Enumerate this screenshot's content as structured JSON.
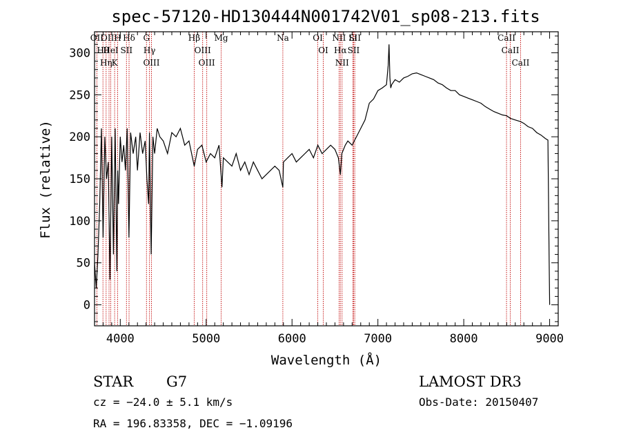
{
  "colors": {
    "spectrum": "#000000",
    "line_marker": "#c00000",
    "axes": "#000000",
    "background": "#ffffff"
  },
  "chart_data": {
    "type": "line",
    "title": "spec-57120-HD130444N001742V01_sp08-213.fits",
    "xlabel": "Wavelength (Å)",
    "ylabel": "Flux (relative)",
    "xlim": [
      3700,
      9100
    ],
    "ylim": [
      -25,
      325
    ],
    "xticks": [
      4000,
      5000,
      6000,
      7000,
      8000,
      9000
    ],
    "yticks": [
      0,
      50,
      100,
      150,
      200,
      250,
      300
    ],
    "grid": false,
    "series": [
      {
        "name": "flux",
        "x": [
          3700,
          3720,
          3740,
          3760,
          3780,
          3800,
          3820,
          3840,
          3860,
          3880,
          3900,
          3920,
          3940,
          3960,
          3970,
          3980,
          4000,
          4020,
          4040,
          4060,
          4080,
          4101,
          4120,
          4150,
          4180,
          4200,
          4230,
          4260,
          4290,
          4310,
          4330,
          4340,
          4360,
          4380,
          4400,
          4430,
          4460,
          4500,
          4550,
          4600,
          4650,
          4700,
          4750,
          4800,
          4861,
          4900,
          4950,
          5000,
          5050,
          5100,
          5150,
          5184,
          5200,
          5250,
          5300,
          5350,
          5400,
          5450,
          5500,
          5550,
          5600,
          5650,
          5700,
          5750,
          5800,
          5850,
          5893,
          5900,
          5950,
          6000,
          6050,
          6100,
          6150,
          6200,
          6250,
          6300,
          6350,
          6400,
          6450,
          6500,
          6540,
          6563,
          6580,
          6600,
          6620,
          6650,
          6700,
          6750,
          6800,
          6850,
          6900,
          6950,
          7000,
          7050,
          7100,
          7120,
          7130,
          7140,
          7150,
          7160,
          7180,
          7200,
          7250,
          7300,
          7350,
          7400,
          7450,
          7500,
          7550,
          7600,
          7650,
          7700,
          7750,
          7800,
          7850,
          7900,
          7950,
          8000,
          8050,
          8100,
          8150,
          8200,
          8250,
          8300,
          8350,
          8400,
          8450,
          8500,
          8542,
          8600,
          8662,
          8700,
          8750,
          8800,
          8850,
          8900,
          8950,
          8980,
          8995,
          9000
        ],
        "values": [
          50,
          20,
          60,
          120,
          210,
          80,
          200,
          150,
          170,
          30,
          200,
          60,
          210,
          40,
          160,
          120,
          200,
          170,
          190,
          160,
          210,
          80,
          205,
          180,
          200,
          160,
          205,
          180,
          195,
          150,
          120,
          205,
          60,
          200,
          180,
          210,
          200,
          195,
          180,
          205,
          200,
          210,
          190,
          195,
          165,
          185,
          190,
          170,
          180,
          175,
          190,
          140,
          175,
          170,
          165,
          180,
          160,
          170,
          155,
          170,
          160,
          150,
          155,
          160,
          165,
          160,
          140,
          170,
          175,
          180,
          170,
          175,
          180,
          185,
          175,
          190,
          180,
          185,
          190,
          185,
          175,
          155,
          180,
          185,
          190,
          195,
          190,
          200,
          210,
          220,
          240,
          245,
          255,
          258,
          262,
          285,
          310,
          270,
          258,
          262,
          265,
          268,
          265,
          270,
          272,
          275,
          276,
          274,
          272,
          270,
          268,
          264,
          262,
          258,
          255,
          255,
          250,
          248,
          246,
          244,
          242,
          240,
          236,
          233,
          230,
          228,
          226,
          225,
          222,
          220,
          218,
          216,
          212,
          210,
          205,
          202,
          198,
          196,
          50,
          0
        ]
      }
    ],
    "spectral_lines": [
      {
        "label": "OII",
        "wavelength": 3727
      },
      {
        "label": "Hθ",
        "wavelength": 3798
      },
      {
        "label": "Hη",
        "wavelength": 3835
      },
      {
        "label": "OIII",
        "wavelength": 3869
      },
      {
        "label": "HeI",
        "wavelength": 3889
      },
      {
        "label": "K",
        "wavelength": 3934
      },
      {
        "label": "H",
        "wavelength": 3969
      },
      {
        "label": "SII",
        "wavelength": 4072
      },
      {
        "label": "Hδ",
        "wavelength": 4102
      },
      {
        "label": "G",
        "wavelength": 4305
      },
      {
        "label": "Hγ",
        "wavelength": 4340
      },
      {
        "label": "OIII",
        "wavelength": 4363
      },
      {
        "label": "Hβ",
        "wavelength": 4861
      },
      {
        "label": "OIII",
        "wavelength": 4959
      },
      {
        "label": "OIII",
        "wavelength": 5007
      },
      {
        "label": "Mg",
        "wavelength": 5175
      },
      {
        "label": "Na",
        "wavelength": 5893
      },
      {
        "label": "OI",
        "wavelength": 6300
      },
      {
        "label": "OI",
        "wavelength": 6364
      },
      {
        "label": "NII",
        "wavelength": 6548
      },
      {
        "label": "Hα",
        "wavelength": 6563
      },
      {
        "label": "NII",
        "wavelength": 6583
      },
      {
        "label": "Li",
        "wavelength": 6708
      },
      {
        "label": "SII",
        "wavelength": 6717
      },
      {
        "label": "SII",
        "wavelength": 6731
      },
      {
        "label": "CaII",
        "wavelength": 8498
      },
      {
        "label": "CaII",
        "wavelength": 8542
      },
      {
        "label": "CaII",
        "wavelength": 8662
      }
    ]
  },
  "info": {
    "object_class": "STAR",
    "subclass": "G7",
    "survey": "LAMOST DR3",
    "cz": "cz = −24.0 ± 5.1 km/s",
    "obs_date": "Obs-Date: 20150407",
    "coords": "RA = 196.83358, DEC =  −1.09196"
  }
}
